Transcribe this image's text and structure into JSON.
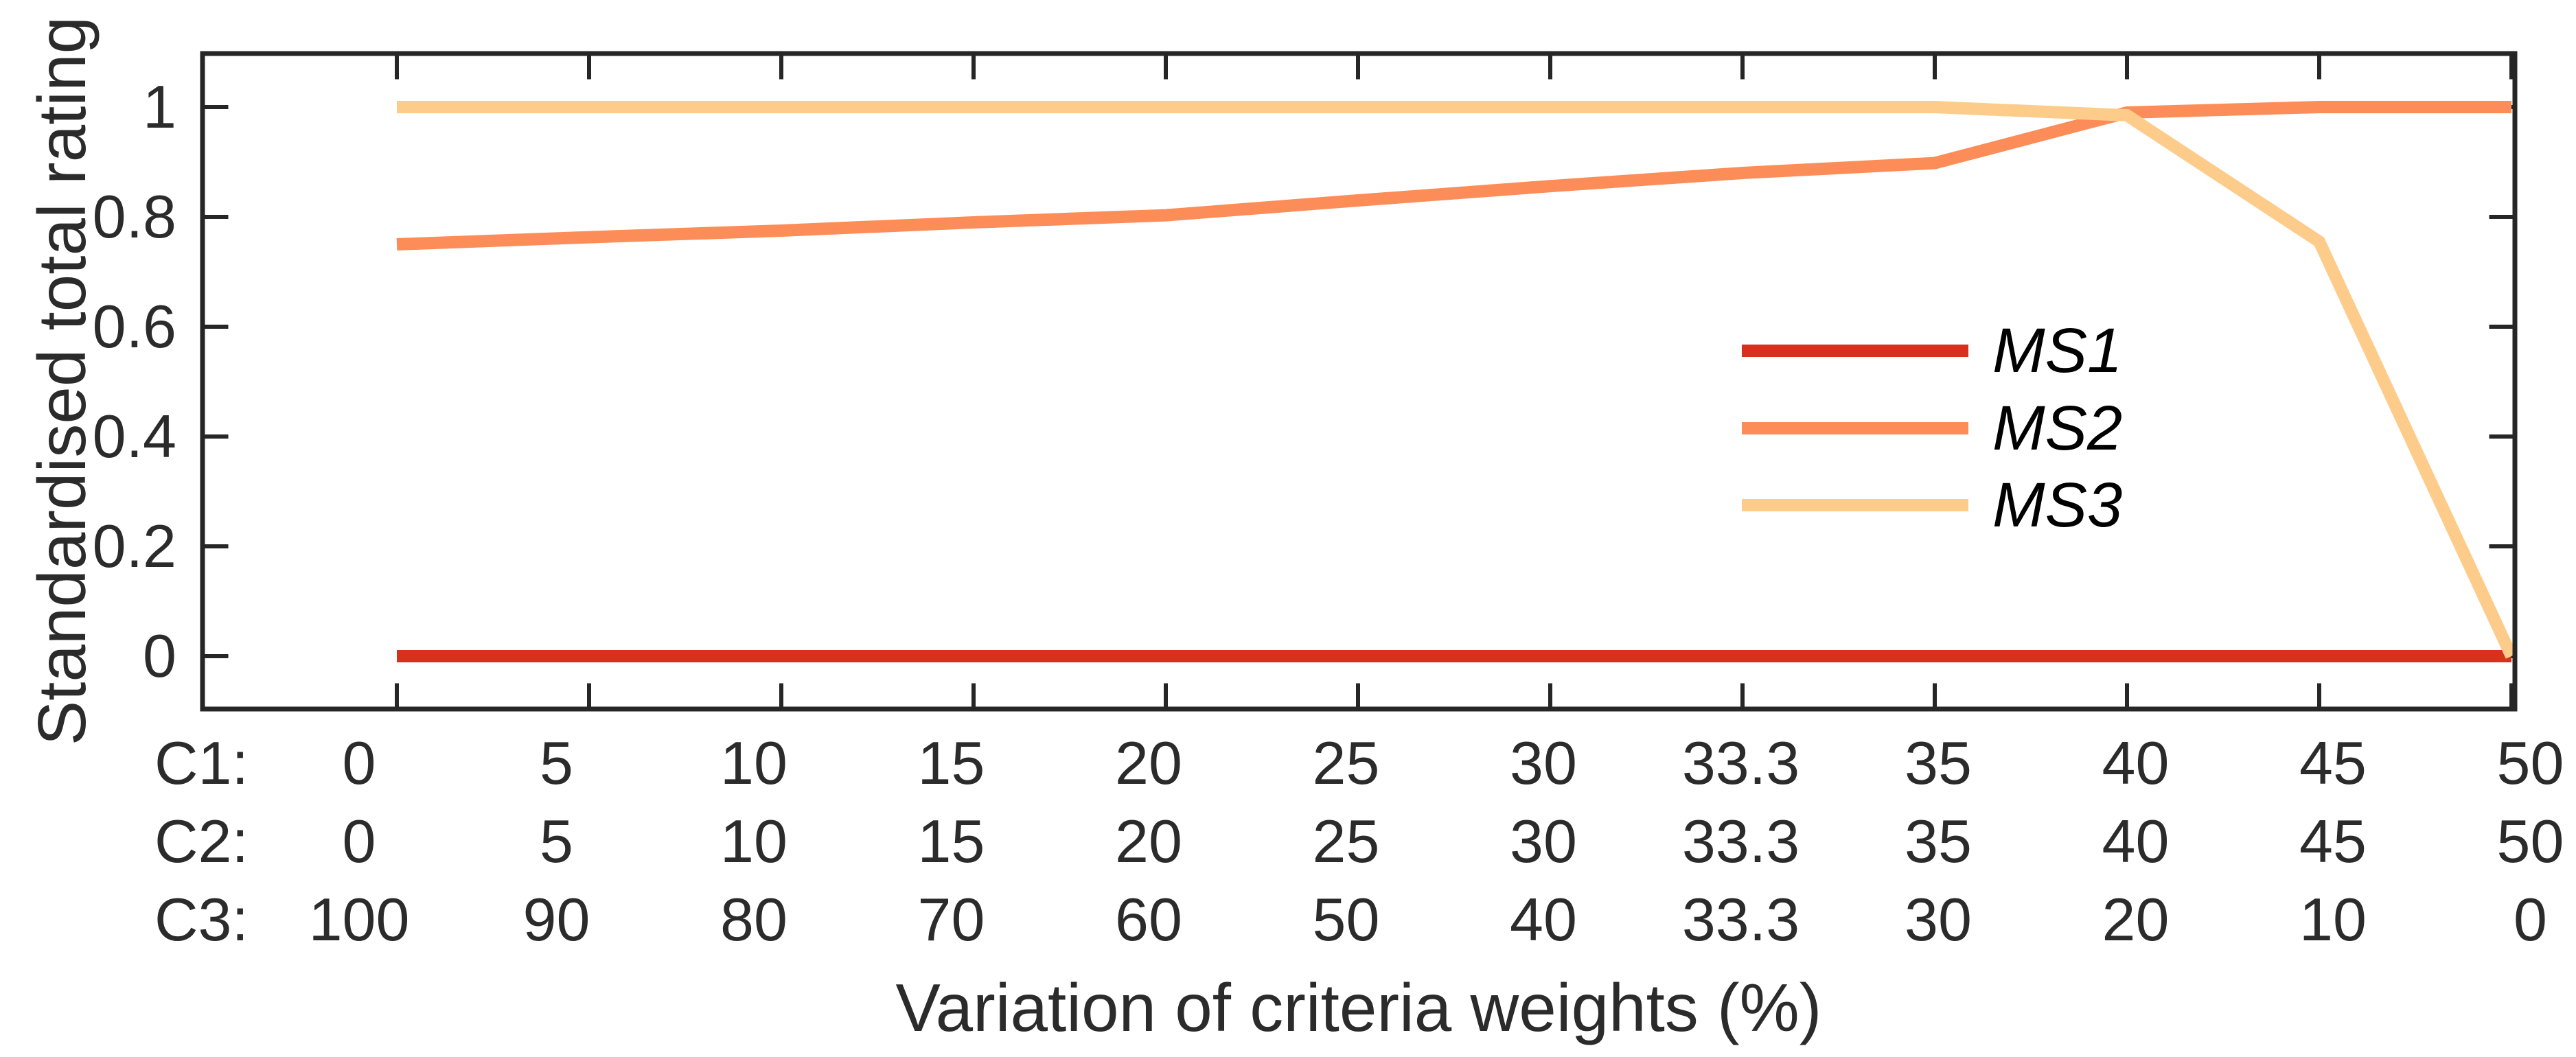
{
  "figure": {
    "background": "#ffffff"
  },
  "chart_data": {
    "type": "line",
    "title": "",
    "xlabel": "Variation of criteria weights (%)",
    "ylabel": "Standardised total rating",
    "x_axis": {
      "tick_count": 12,
      "rows": [
        {
          "label": "C1:",
          "ticks": [
            "0",
            "5",
            "10",
            "15",
            "20",
            "25",
            "30",
            "33.3",
            "35",
            "40",
            "45",
            "50"
          ]
        },
        {
          "label": "C2:",
          "ticks": [
            "0",
            "5",
            "10",
            "15",
            "20",
            "25",
            "30",
            "33.3",
            "35",
            "40",
            "45",
            "50"
          ]
        },
        {
          "label": "C3:",
          "ticks": [
            "100",
            "90",
            "80",
            "70",
            "60",
            "50",
            "40",
            "33.3",
            "30",
            "20",
            "10",
            "0"
          ]
        }
      ]
    },
    "y_axis": {
      "ticks": [
        {
          "label": "0",
          "value": 0
        },
        {
          "label": "0.2",
          "value": 0.2
        },
        {
          "label": "0.4",
          "value": 0.4
        },
        {
          "label": "0.6",
          "value": 0.6
        },
        {
          "label": "0.8",
          "value": 0.8
        },
        {
          "label": "1",
          "value": 1
        }
      ],
      "range_shown": [
        -0.0975,
        1.0975
      ]
    },
    "series": [
      {
        "name": "MS1",
        "color": "#d7301f",
        "values": [
          0,
          0,
          0,
          0,
          0,
          0,
          0,
          0,
          0,
          0,
          0,
          0
        ]
      },
      {
        "name": "MS2",
        "color": "#fc8d59",
        "values": [
          0.75,
          0.763,
          0.775,
          0.79,
          0.803,
          0.83,
          0.856,
          0.88,
          0.898,
          0.99,
          1,
          1
        ]
      },
      {
        "name": "MS3",
        "color": "#fdcc8a",
        "values": [
          1,
          1,
          1,
          1,
          1,
          1,
          1,
          1,
          1,
          0.985,
          0.755,
          0
        ]
      }
    ],
    "legend": {
      "entries": [
        "MS1",
        "MS2",
        "MS3"
      ],
      "position": "center-right",
      "style": "italic"
    },
    "grid": false,
    "axis_color": "#262626",
    "text_color": "#2b2b2b"
  }
}
